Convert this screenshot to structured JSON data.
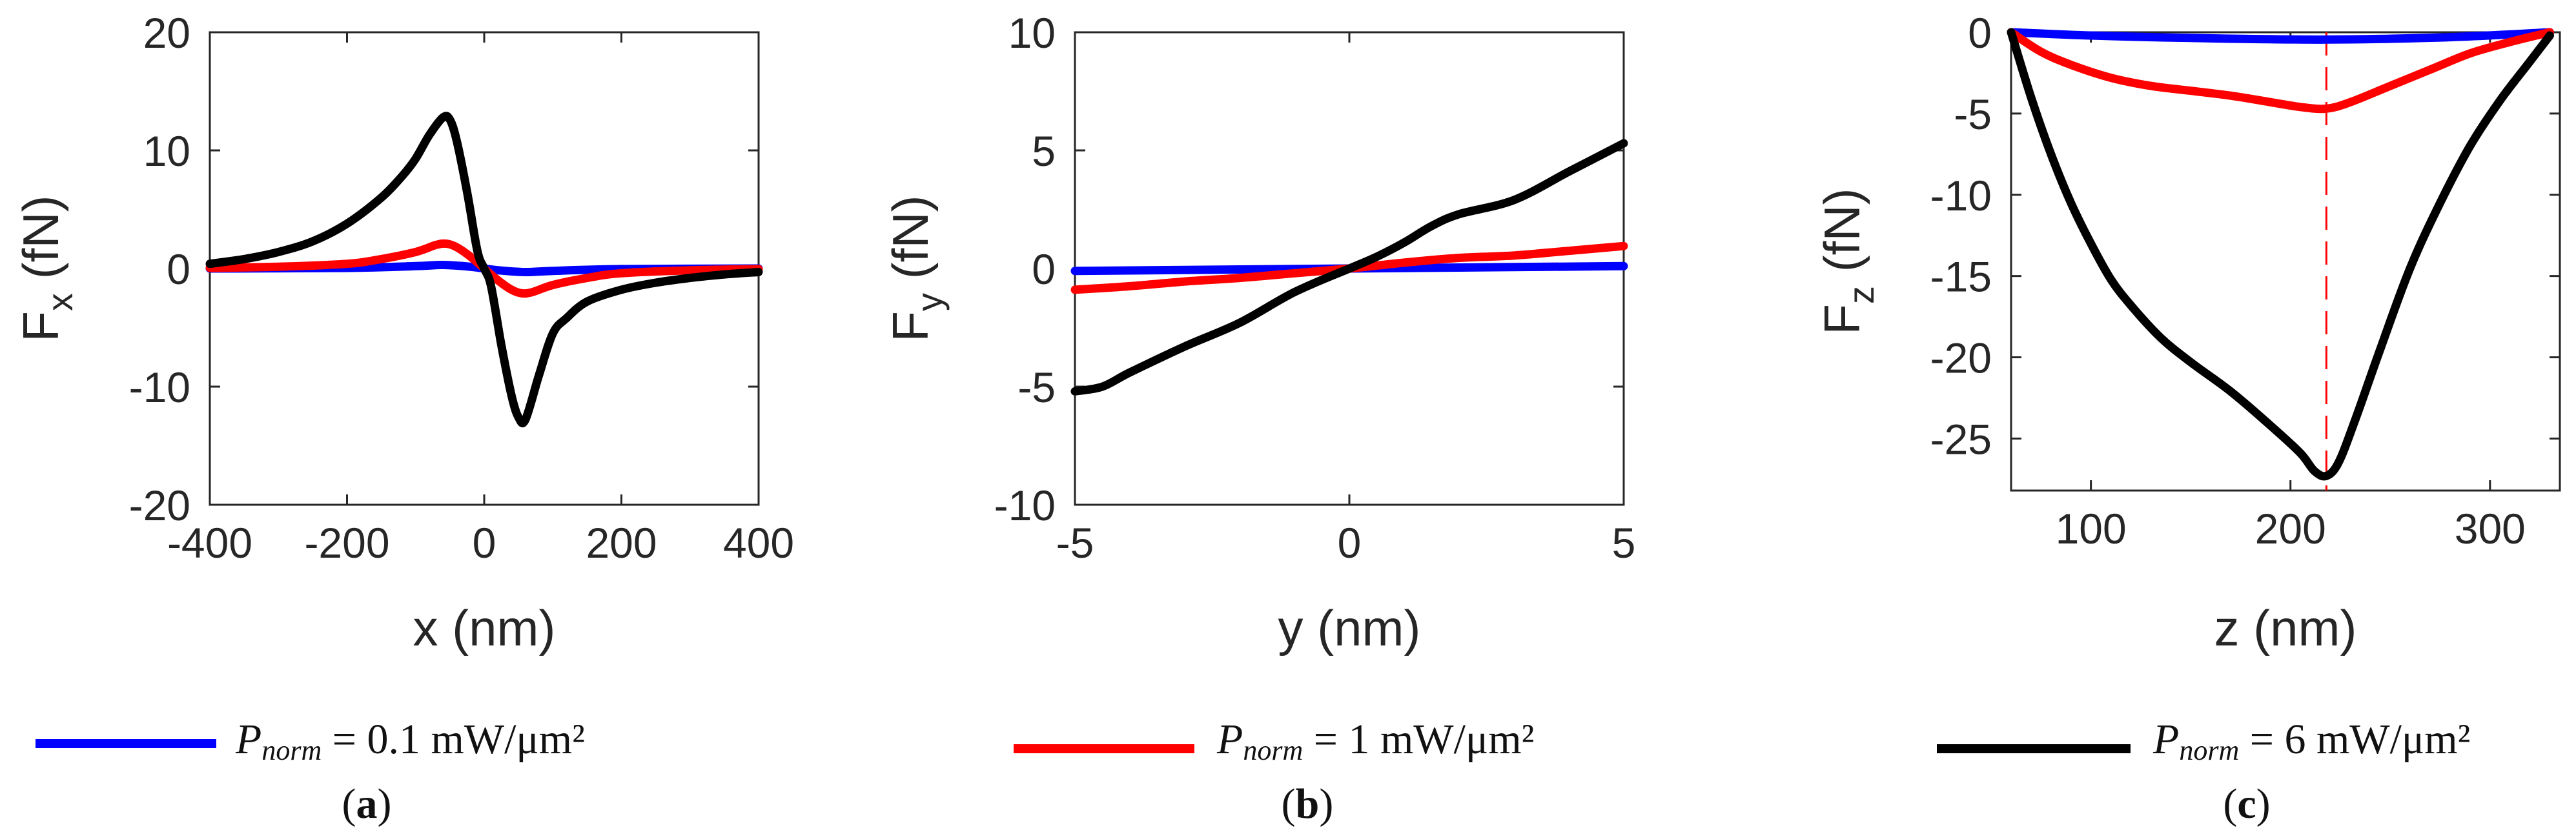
{
  "colors": {
    "blue": "#0000ff",
    "red": "#ff0000",
    "black": "#000000",
    "axis": "#262626"
  },
  "legend": [
    {
      "label_main": "P",
      "label_sub": "norm",
      "label_value": " = 0.1 mW/μm²",
      "color": "#0000ff"
    },
    {
      "label_main": "P",
      "label_sub": "norm",
      "label_value": " = 1 mW/μm²",
      "color": "#ff0000"
    },
    {
      "label_main": "P",
      "label_sub": "norm",
      "label_value": " = 6 mW/μm²",
      "color": "#000000"
    }
  ],
  "captions": [
    {
      "open": "(",
      "letter": "a",
      "close": ")"
    },
    {
      "open": "(",
      "letter": "b",
      "close": ")"
    },
    {
      "open": "(",
      "letter": "c",
      "close": ")"
    }
  ],
  "chart_data": [
    {
      "type": "line",
      "title": "",
      "xlabel": "x (nm)",
      "ylabel_main": "F",
      "ylabel_sub": "x",
      "ylabel_rest": " (fN)",
      "xlim": [
        -400,
        400
      ],
      "ylim": [
        -20,
        20
      ],
      "xticks": [
        -400,
        -200,
        0,
        200,
        400
      ],
      "yticks": [
        -20,
        -10,
        0,
        10,
        20
      ],
      "grid": false,
      "series": [
        {
          "name": "P_norm = 0.1 mW/μm²",
          "color": "#0000ff",
          "x": [
            -400,
            -200,
            -100,
            -60,
            -20,
            0,
            20,
            60,
            100,
            200,
            400
          ],
          "y": [
            0,
            0.05,
            0.2,
            0.3,
            0.15,
            0,
            -0.15,
            -0.3,
            -0.2,
            -0.05,
            0
          ]
        },
        {
          "name": "P_norm = 1 mW/μm²",
          "color": "#ff0000",
          "x": [
            -400,
            -300,
            -200,
            -150,
            -100,
            -70,
            -55,
            -40,
            -20,
            0,
            20,
            40,
            55,
            70,
            100,
            150,
            200,
            300,
            400
          ],
          "y": [
            0.05,
            0.15,
            0.4,
            0.8,
            1.4,
            2.0,
            2.1,
            1.8,
            1.0,
            0,
            -1.0,
            -1.8,
            -2.1,
            -2.0,
            -1.4,
            -0.8,
            -0.4,
            -0.15,
            -0.05
          ]
        },
        {
          "name": "P_norm = 6 mW/μm²",
          "color": "#000000",
          "x": [
            -400,
            -350,
            -300,
            -250,
            -200,
            -150,
            -120,
            -100,
            -80,
            -60,
            -50,
            -40,
            -25,
            -10,
            0,
            10,
            25,
            40,
            50,
            60,
            80,
            100,
            120,
            150,
            200,
            250,
            300,
            350,
            400
          ],
          "y": [
            0.4,
            0.8,
            1.4,
            2.3,
            3.8,
            6.0,
            7.8,
            9.3,
            11.3,
            12.8,
            12.6,
            10.8,
            6.5,
            1.5,
            0,
            -1.5,
            -6.5,
            -10.8,
            -12.6,
            -12.8,
            -9.0,
            -5.5,
            -4.2,
            -2.8,
            -1.8,
            -1.2,
            -0.8,
            -0.5,
            -0.3
          ]
        }
      ]
    },
    {
      "type": "line",
      "title": "",
      "xlabel": "y (nm)",
      "ylabel_main": "F",
      "ylabel_sub": "y",
      "ylabel_rest": " (fN)",
      "xlim": [
        -5,
        5
      ],
      "ylim": [
        -10,
        10
      ],
      "xticks": [
        -5,
        0,
        5
      ],
      "yticks": [
        -10,
        -5,
        0,
        5,
        10
      ],
      "grid": false,
      "series": [
        {
          "name": "P_norm = 0.1 mW/μm²",
          "color": "#0000ff",
          "x": [
            -5,
            5
          ],
          "y": [
            -0.1,
            0.1
          ]
        },
        {
          "name": "P_norm = 1 mW/μm²",
          "color": "#ff0000",
          "x": [
            -5,
            -4,
            -3,
            -2,
            -1,
            0,
            1,
            2,
            3,
            4,
            5
          ],
          "y": [
            -0.9,
            -0.75,
            -0.55,
            -0.4,
            -0.2,
            0,
            0.25,
            0.45,
            0.55,
            0.75,
            0.95
          ]
        },
        {
          "name": "P_norm = 6 mW/μm²",
          "color": "#000000",
          "x": [
            -5,
            -4.5,
            -4,
            -3,
            -2,
            -1,
            0,
            0.5,
            1,
            1.5,
            2,
            3,
            4,
            5
          ],
          "y": [
            -5.2,
            -5.0,
            -4.4,
            -3.3,
            -2.3,
            -1.0,
            0,
            0.5,
            1.1,
            1.8,
            2.3,
            2.9,
            4.1,
            5.3
          ]
        }
      ]
    },
    {
      "type": "line",
      "title": "",
      "xlabel": "z (nm)",
      "ylabel_main": "F",
      "ylabel_sub": "z",
      "ylabel_rest": " (fN)",
      "xlim": [
        60,
        335
      ],
      "ylim": [
        -28.2,
        0
      ],
      "xticks": [
        100,
        200,
        300
      ],
      "yticks": [
        0,
        -5,
        -10,
        -15,
        -20,
        -25
      ],
      "grid": false,
      "vline": {
        "x": 218,
        "color": "#ff0000",
        "style": "dashed"
      },
      "series": [
        {
          "name": "P_norm = 0.1 mW/μm²",
          "color": "#0000ff",
          "x": [
            60,
            100,
            150,
            218,
            280,
            330
          ],
          "y": [
            0,
            -0.2,
            -0.35,
            -0.45,
            -0.3,
            0
          ]
        },
        {
          "name": "P_norm = 1 mW/μm²",
          "color": "#ff0000",
          "x": [
            60,
            75,
            90,
            110,
            130,
            150,
            170,
            190,
            205,
            218,
            230,
            250,
            270,
            290,
            310,
            330
          ],
          "y": [
            0,
            -1.2,
            -2.0,
            -2.8,
            -3.3,
            -3.6,
            -3.9,
            -4.3,
            -4.6,
            -4.7,
            -4.3,
            -3.3,
            -2.3,
            -1.3,
            -0.6,
            0
          ]
        },
        {
          "name": "P_norm = 6 mW/μm²",
          "color": "#000000",
          "x": [
            60,
            70,
            80,
            90,
            100,
            110,
            120,
            135,
            150,
            170,
            190,
            205,
            212,
            218,
            224,
            232,
            245,
            260,
            275,
            290,
            305,
            320,
            330
          ],
          "y": [
            0,
            -4.0,
            -7.5,
            -10.5,
            -13.0,
            -15.2,
            -16.8,
            -18.8,
            -20.3,
            -22.1,
            -24.2,
            -25.9,
            -27.0,
            -27.3,
            -26.5,
            -24.0,
            -19.5,
            -14.5,
            -10.5,
            -7.0,
            -4.2,
            -1.8,
            -0.2
          ]
        }
      ]
    }
  ]
}
